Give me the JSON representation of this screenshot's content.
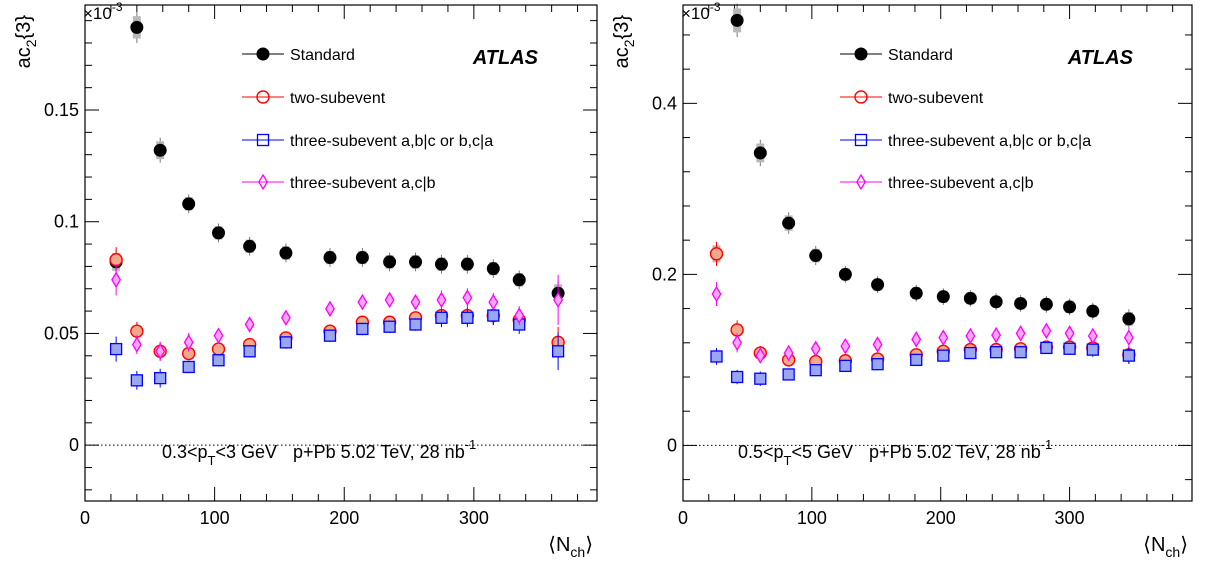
{
  "experiment": "ATLAS",
  "legend_labels": [
    "Standard",
    "two-subevent",
    "three-subevent a,b|c or b,c|a",
    "three-subevent a,c|b"
  ],
  "styles": {
    "standard_color": "#000000",
    "two_color": "#ff0000",
    "two_fill": "#f0a98c",
    "three_color": "#0000ff",
    "three_fill": "#9aa6f0",
    "ac_color": "#ff00ff",
    "ac_fill": "#f6a8f6",
    "syst_color": "#b8b8b8"
  },
  "chart_data": [
    {
      "type": "scatter",
      "ylabel_main": "ac",
      "ylabel_sub": "2",
      "ylabel_tail": "{3}",
      "xlabel_main": "⟨N",
      "xlabel_sub": "ch",
      "xlabel_tail": "⟩",
      "scale_base": "×10",
      "scale_exp": "-3",
      "xlim": [
        0,
        395
      ],
      "ylim": [
        -0.025,
        0.197
      ],
      "xticks": [
        0,
        100,
        200,
        300
      ],
      "xtick_labels": [
        "0",
        "100",
        "200",
        "300"
      ],
      "yticks": [
        0,
        0.05,
        0.1,
        0.15
      ],
      "ytick_labels": [
        "0",
        "0.05",
        "0.1",
        "0.15"
      ],
      "annotation_pt_pre": "0.3<p",
      "annotation_pt_sub": "T",
      "annotation_pt_post": "<3 GeV",
      "annotation_sys_main": "p+Pb 5.02 TeV, 28 nb",
      "annotation_sys_sup": "-1",
      "series": [
        {
          "name": "Standard",
          "x": [
            24,
            40,
            58,
            80,
            103,
            127,
            155,
            189,
            214,
            235,
            255,
            275,
            295,
            315,
            335,
            365
          ],
          "y": [
            0.082,
            0.187,
            0.132,
            0.108,
            0.095,
            0.089,
            0.086,
            0.084,
            0.084,
            0.082,
            0.082,
            0.081,
            0.081,
            0.079,
            0.074,
            0.068
          ],
          "err": [
            0.004,
            0.005,
            0.004,
            0.003,
            0.003,
            0.003,
            0.003,
            0.003,
            0.003,
            0.003,
            0.003,
            0.003,
            0.003,
            0.003,
            0.003,
            0.004
          ]
        },
        {
          "name": "two-subevent",
          "x": [
            24,
            40,
            58,
            80,
            103,
            127,
            155,
            189,
            214,
            235,
            255,
            275,
            295,
            315,
            335,
            365
          ],
          "y": [
            0.083,
            0.051,
            0.042,
            0.041,
            0.043,
            0.045,
            0.048,
            0.051,
            0.055,
            0.055,
            0.057,
            0.058,
            0.058,
            0.058,
            0.056,
            0.046
          ],
          "err": [
            0.004,
            0.003,
            0.003,
            0.002,
            0.002,
            0.002,
            0.002,
            0.002,
            0.002,
            0.002,
            0.002,
            0.003,
            0.003,
            0.003,
            0.003,
            0.005
          ]
        },
        {
          "name": "three-subevent a,b|c or b,c|a",
          "x": [
            24,
            40,
            58,
            80,
            103,
            127,
            155,
            189,
            214,
            235,
            255,
            275,
            295,
            315,
            335,
            365
          ],
          "y": [
            0.043,
            0.029,
            0.03,
            0.035,
            0.038,
            0.042,
            0.046,
            0.049,
            0.052,
            0.053,
            0.054,
            0.057,
            0.057,
            0.058,
            0.054,
            0.042
          ],
          "err": [
            0.004,
            0.003,
            0.003,
            0.002,
            0.002,
            0.002,
            0.002,
            0.002,
            0.002,
            0.002,
            0.002,
            0.003,
            0.003,
            0.003,
            0.003,
            0.006
          ]
        },
        {
          "name": "three-subevent a,c|b",
          "x": [
            24,
            40,
            58,
            80,
            103,
            127,
            155,
            189,
            214,
            235,
            255,
            275,
            295,
            315,
            335,
            365
          ],
          "y": [
            0.074,
            0.045,
            0.042,
            0.046,
            0.049,
            0.054,
            0.057,
            0.061,
            0.064,
            0.065,
            0.064,
            0.065,
            0.066,
            0.064,
            0.058,
            0.065
          ],
          "err": [
            0.005,
            0.003,
            0.003,
            0.003,
            0.002,
            0.002,
            0.002,
            0.002,
            0.002,
            0.002,
            0.002,
            0.003,
            0.003,
            0.003,
            0.003,
            0.008
          ]
        }
      ]
    },
    {
      "type": "scatter",
      "ylabel_main": "ac",
      "ylabel_sub": "2",
      "ylabel_tail": "{3}",
      "xlabel_main": "⟨N",
      "xlabel_sub": "ch",
      "xlabel_tail": "⟩",
      "scale_base": "×10",
      "scale_exp": "-3",
      "xlim": [
        0,
        395
      ],
      "ylim": [
        -0.065,
        0.515
      ],
      "xticks": [
        0,
        100,
        200,
        300
      ],
      "xtick_labels": [
        "0",
        "100",
        "200",
        "300"
      ],
      "yticks": [
        0,
        0.2,
        0.4
      ],
      "ytick_labels": [
        "0",
        "0.2",
        "0.4"
      ],
      "annotation_pt_pre": "0.5<p",
      "annotation_pt_sub": "T",
      "annotation_pt_post": "<5 GeV",
      "annotation_sys_main": "p+Pb 5.02 TeV, 28 nb",
      "annotation_sys_sup": "-1",
      "series": [
        {
          "name": "Standard",
          "x": [
            26,
            42,
            60,
            82,
            103,
            126,
            151,
            181,
            202,
            223,
            243,
            262,
            282,
            300,
            318,
            346
          ],
          "y": [
            0.224,
            0.497,
            0.342,
            0.26,
            0.222,
            0.2,
            0.188,
            0.178,
            0.174,
            0.172,
            0.168,
            0.166,
            0.165,
            0.162,
            0.157,
            0.148
          ],
          "err": [
            0.01,
            0.014,
            0.011,
            0.009,
            0.008,
            0.007,
            0.007,
            0.007,
            0.007,
            0.007,
            0.007,
            0.007,
            0.007,
            0.007,
            0.007,
            0.008
          ]
        },
        {
          "name": "two-subevent",
          "x": [
            26,
            42,
            60,
            82,
            103,
            126,
            151,
            181,
            202,
            223,
            243,
            262,
            282,
            300,
            318,
            346
          ],
          "y": [
            0.224,
            0.135,
            0.108,
            0.1,
            0.098,
            0.099,
            0.101,
            0.106,
            0.11,
            0.112,
            0.112,
            0.113,
            0.115,
            0.115,
            0.114,
            0.106
          ],
          "err": [
            0.01,
            0.008,
            0.006,
            0.005,
            0.005,
            0.005,
            0.005,
            0.005,
            0.005,
            0.005,
            0.005,
            0.005,
            0.005,
            0.005,
            0.006,
            0.007
          ]
        },
        {
          "name": "three-subevent a,b|c or b,c|a",
          "x": [
            26,
            42,
            60,
            82,
            103,
            126,
            151,
            181,
            202,
            223,
            243,
            262,
            282,
            300,
            318,
            346
          ],
          "y": [
            0.104,
            0.08,
            0.078,
            0.083,
            0.088,
            0.093,
            0.095,
            0.1,
            0.105,
            0.108,
            0.109,
            0.109,
            0.114,
            0.113,
            0.112,
            0.105
          ],
          "err": [
            0.007,
            0.006,
            0.006,
            0.005,
            0.005,
            0.005,
            0.005,
            0.005,
            0.005,
            0.005,
            0.005,
            0.005,
            0.005,
            0.005,
            0.006,
            0.007
          ]
        },
        {
          "name": "three-subevent a,c|b",
          "x": [
            26,
            42,
            60,
            82,
            103,
            126,
            151,
            181,
            202,
            223,
            243,
            262,
            282,
            300,
            318,
            346
          ],
          "y": [
            0.177,
            0.12,
            0.105,
            0.108,
            0.113,
            0.116,
            0.118,
            0.124,
            0.126,
            0.128,
            0.129,
            0.131,
            0.134,
            0.131,
            0.128,
            0.126
          ],
          "err": [
            0.01,
            0.008,
            0.006,
            0.005,
            0.005,
            0.005,
            0.005,
            0.005,
            0.005,
            0.005,
            0.005,
            0.005,
            0.005,
            0.005,
            0.006,
            0.008
          ]
        }
      ]
    }
  ]
}
